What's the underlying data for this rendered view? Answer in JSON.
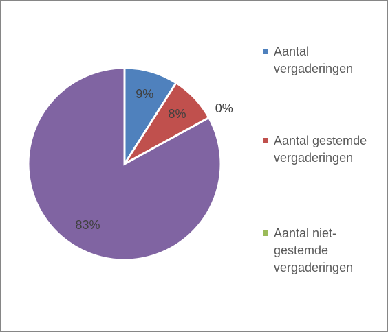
{
  "chart_data": {
    "type": "pie",
    "categories": [
      "Aantal vergaderingen",
      "Aantal gestemde vergaderingen",
      "Aantal niet-gestemde vergaderingen",
      null
    ],
    "values": [
      9,
      8,
      0,
      83
    ],
    "value_labels": [
      "9%",
      "8%",
      "0%",
      "83%"
    ],
    "colors": [
      "#4f81bd",
      "#c0504d",
      "#9bbb59",
      "#8064a2"
    ],
    "legend": "right"
  }
}
